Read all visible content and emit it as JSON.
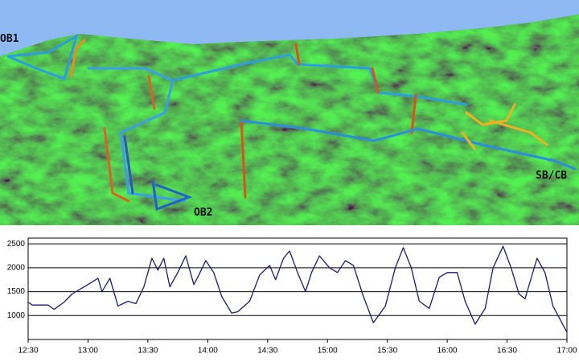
{
  "terrain_view": {
    "labels": [
      "OB1",
      "OB2",
      "SB/CB"
    ]
  },
  "chart_data": {
    "type": "line",
    "color": "#1a1a6e",
    "x": [
      "12:30",
      "12:32",
      "12:40",
      "12:43",
      "12:48",
      "12:52",
      "12:56",
      "13:00",
      "13:05",
      "13:07",
      "13:11",
      "13:15",
      "13:20",
      "13:24",
      "13:28",
      "13:32",
      "13:35",
      "13:38",
      "13:41",
      "13:45",
      "13:49",
      "13:53",
      "13:55",
      "13:59",
      "14:03",
      "14:07",
      "14:12",
      "14:15",
      "14:21",
      "14:26",
      "14:31",
      "14:34",
      "14:38",
      "14:41",
      "14:45",
      "14:49",
      "14:52",
      "14:56",
      "15:01",
      "15:05",
      "15:09",
      "15:13",
      "15:18",
      "15:23",
      "15:29",
      "15:34",
      "15:38",
      "15:42",
      "15:46",
      "15:51",
      "15:56",
      "16:00",
      "16:05",
      "16:09",
      "16:14",
      "16:19",
      "16:23",
      "16:28",
      "16:32",
      "16:36",
      "16:39",
      "16:45",
      "16:49",
      "16:53",
      "17:00"
    ],
    "values": [
      1280,
      1220,
      1220,
      1130,
      1280,
      1450,
      1550,
      1650,
      1780,
      1500,
      1780,
      1200,
      1300,
      1250,
      1600,
      2200,
      1950,
      2200,
      1600,
      1900,
      2250,
      1650,
      1800,
      2150,
      1900,
      1400,
      1050,
      1080,
      1300,
      1850,
      2050,
      1750,
      2200,
      2350,
      1900,
      1500,
      1900,
      2250,
      2000,
      1900,
      2150,
      2050,
      1400,
      850,
      1200,
      2000,
      2420,
      2000,
      1300,
      1150,
      1800,
      1900,
      1900,
      1300,
      820,
      1150,
      2000,
      2450,
      2000,
      1450,
      1350,
      2200,
      1900,
      1200,
      650
    ],
    "xlim": [
      "12:30",
      "17:00"
    ],
    "xticks": [
      "12:30",
      "13:00",
      "13:30",
      "14:00",
      "14:30",
      "15:00",
      "15:30",
      "16:00",
      "16:30",
      "17:00"
    ],
    "ylim": [
      500,
      2620
    ],
    "yticks": [
      1000,
      1500,
      2000,
      2500
    ],
    "grid": true
  }
}
